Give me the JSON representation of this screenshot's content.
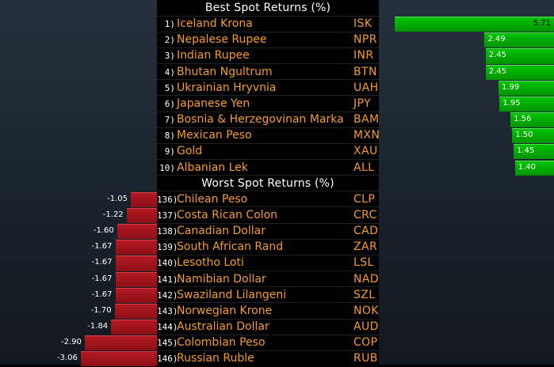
{
  "chart_data": [
    {
      "type": "bar",
      "title": "Best Spot Returns (%)",
      "categories": [
        "Iceland Krona",
        "Nepalese Rupee",
        "Indian Rupee",
        "Bhutan Ngultrum",
        "Ukrainian Hryvnia",
        "Japanese Yen",
        "Bosnia & Herzegovinan Marka",
        "Mexican Peso",
        "Gold",
        "Albanian Lek"
      ],
      "ranks": [
        "1)",
        "2)",
        "3)",
        "4)",
        "5)",
        "6)",
        "7)",
        "8)",
        "9)",
        "10)"
      ],
      "codes": [
        "ISK",
        "NPR",
        "INR",
        "BTN",
        "UAH",
        "JPY",
        "BAM",
        "MXN",
        "XAU",
        "ALL"
      ],
      "values": [
        5.71,
        2.49,
        2.45,
        2.45,
        1.99,
        1.95,
        1.56,
        1.5,
        1.45,
        1.4
      ],
      "labels": [
        "5.71",
        "2.49",
        "2.45",
        "2.45",
        "1.99",
        "1.95",
        "1.56",
        "1.50",
        "1.45",
        "1.40"
      ],
      "color": "#00b000",
      "orientation": "horizontal"
    },
    {
      "type": "bar",
      "title": "Worst Spot Returns (%)",
      "categories": [
        "Chilean Peso",
        "Costa Rican Colon",
        "Canadian Dollar",
        "South African Rand",
        "Lesotho Loti",
        "Namibian Dollar",
        "Swaziland Lilangeni",
        "Norwegian Krone",
        "Australian Dollar",
        "Colombian Peso",
        "Russian Ruble"
      ],
      "ranks": [
        "136)",
        "137)",
        "138)",
        "139)",
        "140)",
        "141)",
        "142)",
        "143)",
        "144)",
        "145)",
        "146)"
      ],
      "codes": [
        "CLP",
        "CRC",
        "CAD",
        "ZAR",
        "LSL",
        "NAD",
        "SZL",
        "NOK",
        "AUD",
        "COP",
        "RUB"
      ],
      "values": [
        -1.05,
        -1.22,
        -1.6,
        -1.67,
        -1.67,
        -1.67,
        -1.67,
        -1.7,
        -1.84,
        -2.9,
        -3.06
      ],
      "labels": [
        "-1.05",
        "-1.22",
        "-1.60",
        "-1.67",
        "-1.67",
        "-1.67",
        "-1.67",
        "-1.70",
        "-1.84",
        "-2.90",
        "-3.06"
      ],
      "color": "#a0121b",
      "orientation": "horizontal"
    }
  ],
  "colors": {
    "text_accent": "#f59b2f",
    "heading": "#ffffff",
    "positive": "#00b000",
    "negative": "#a0121b",
    "background": "#000000"
  }
}
